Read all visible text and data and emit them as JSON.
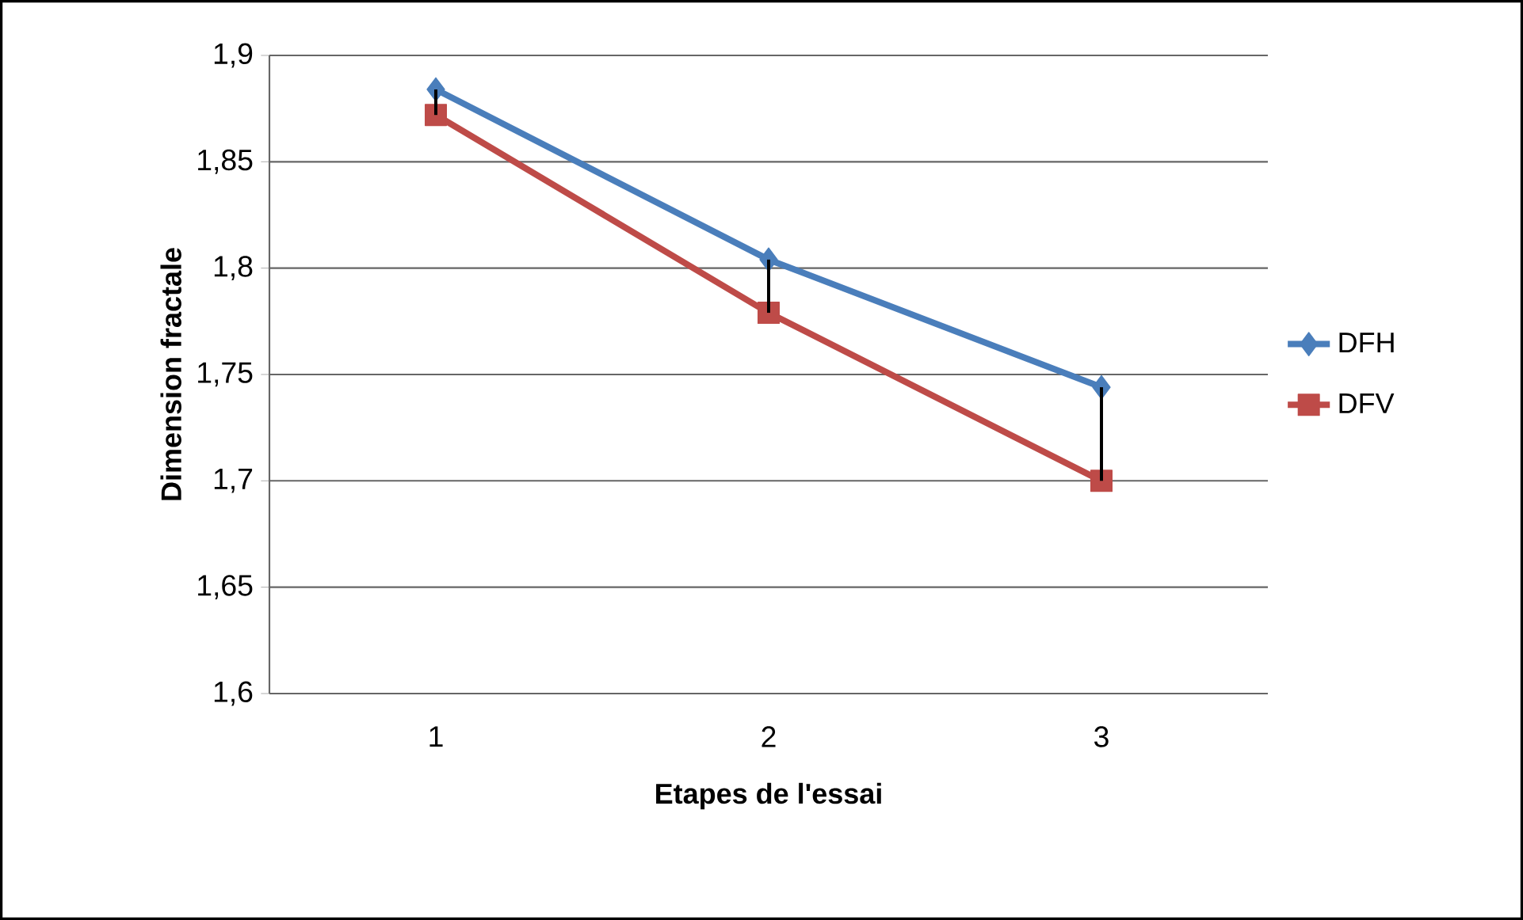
{
  "chart_data": {
    "type": "line",
    "xlabel": "Etapes  de l'essai",
    "ylabel": "Dimension fractale",
    "categories": [
      "1",
      "2",
      "3"
    ],
    "series": [
      {
        "name": "DFH",
        "color": "#4a7ebb",
        "marker": "diamond",
        "values": [
          1.884,
          1.804,
          1.744
        ],
        "errors": [
          [
            1.872,
            1.884
          ],
          [
            1.779,
            1.804
          ],
          [
            1.7,
            1.744
          ]
        ]
      },
      {
        "name": "DFV",
        "color": "#be4b48",
        "marker": "square",
        "values": [
          1.872,
          1.779,
          1.7
        ]
      }
    ],
    "ylim": [
      1.6,
      1.9
    ],
    "yticks": [
      {
        "value": 1.6,
        "label": "1,6"
      },
      {
        "value": 1.65,
        "label": "1,65"
      },
      {
        "value": 1.7,
        "label": "1,7"
      },
      {
        "value": 1.75,
        "label": "1,75"
      },
      {
        "value": 1.8,
        "label": "1,8"
      },
      {
        "value": 1.85,
        "label": "1,85"
      },
      {
        "value": 1.9,
        "label": "1,9"
      }
    ],
    "grid": "y",
    "legend": "right",
    "line_style": "solid"
  }
}
